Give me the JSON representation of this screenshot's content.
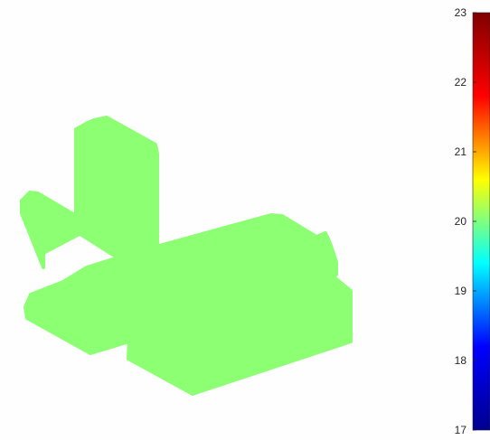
{
  "chart_data": {
    "type": "3d-surface",
    "colormap": "jet",
    "colormap_stops": [
      "#00008f",
      "#0000ff",
      "#00ffff",
      "#ffff00",
      "#ff0000",
      "#800000"
    ],
    "surface_value": 20.2,
    "surface_color": "#8cff73",
    "colorbar": {
      "range": [
        17,
        23
      ],
      "ticks": [
        17,
        18,
        19,
        20,
        21,
        22,
        23
      ],
      "tick_labels": [
        "17",
        "18",
        "19",
        "20",
        "21",
        "22",
        "23"
      ]
    },
    "axes_visible": false,
    "grid": false
  }
}
